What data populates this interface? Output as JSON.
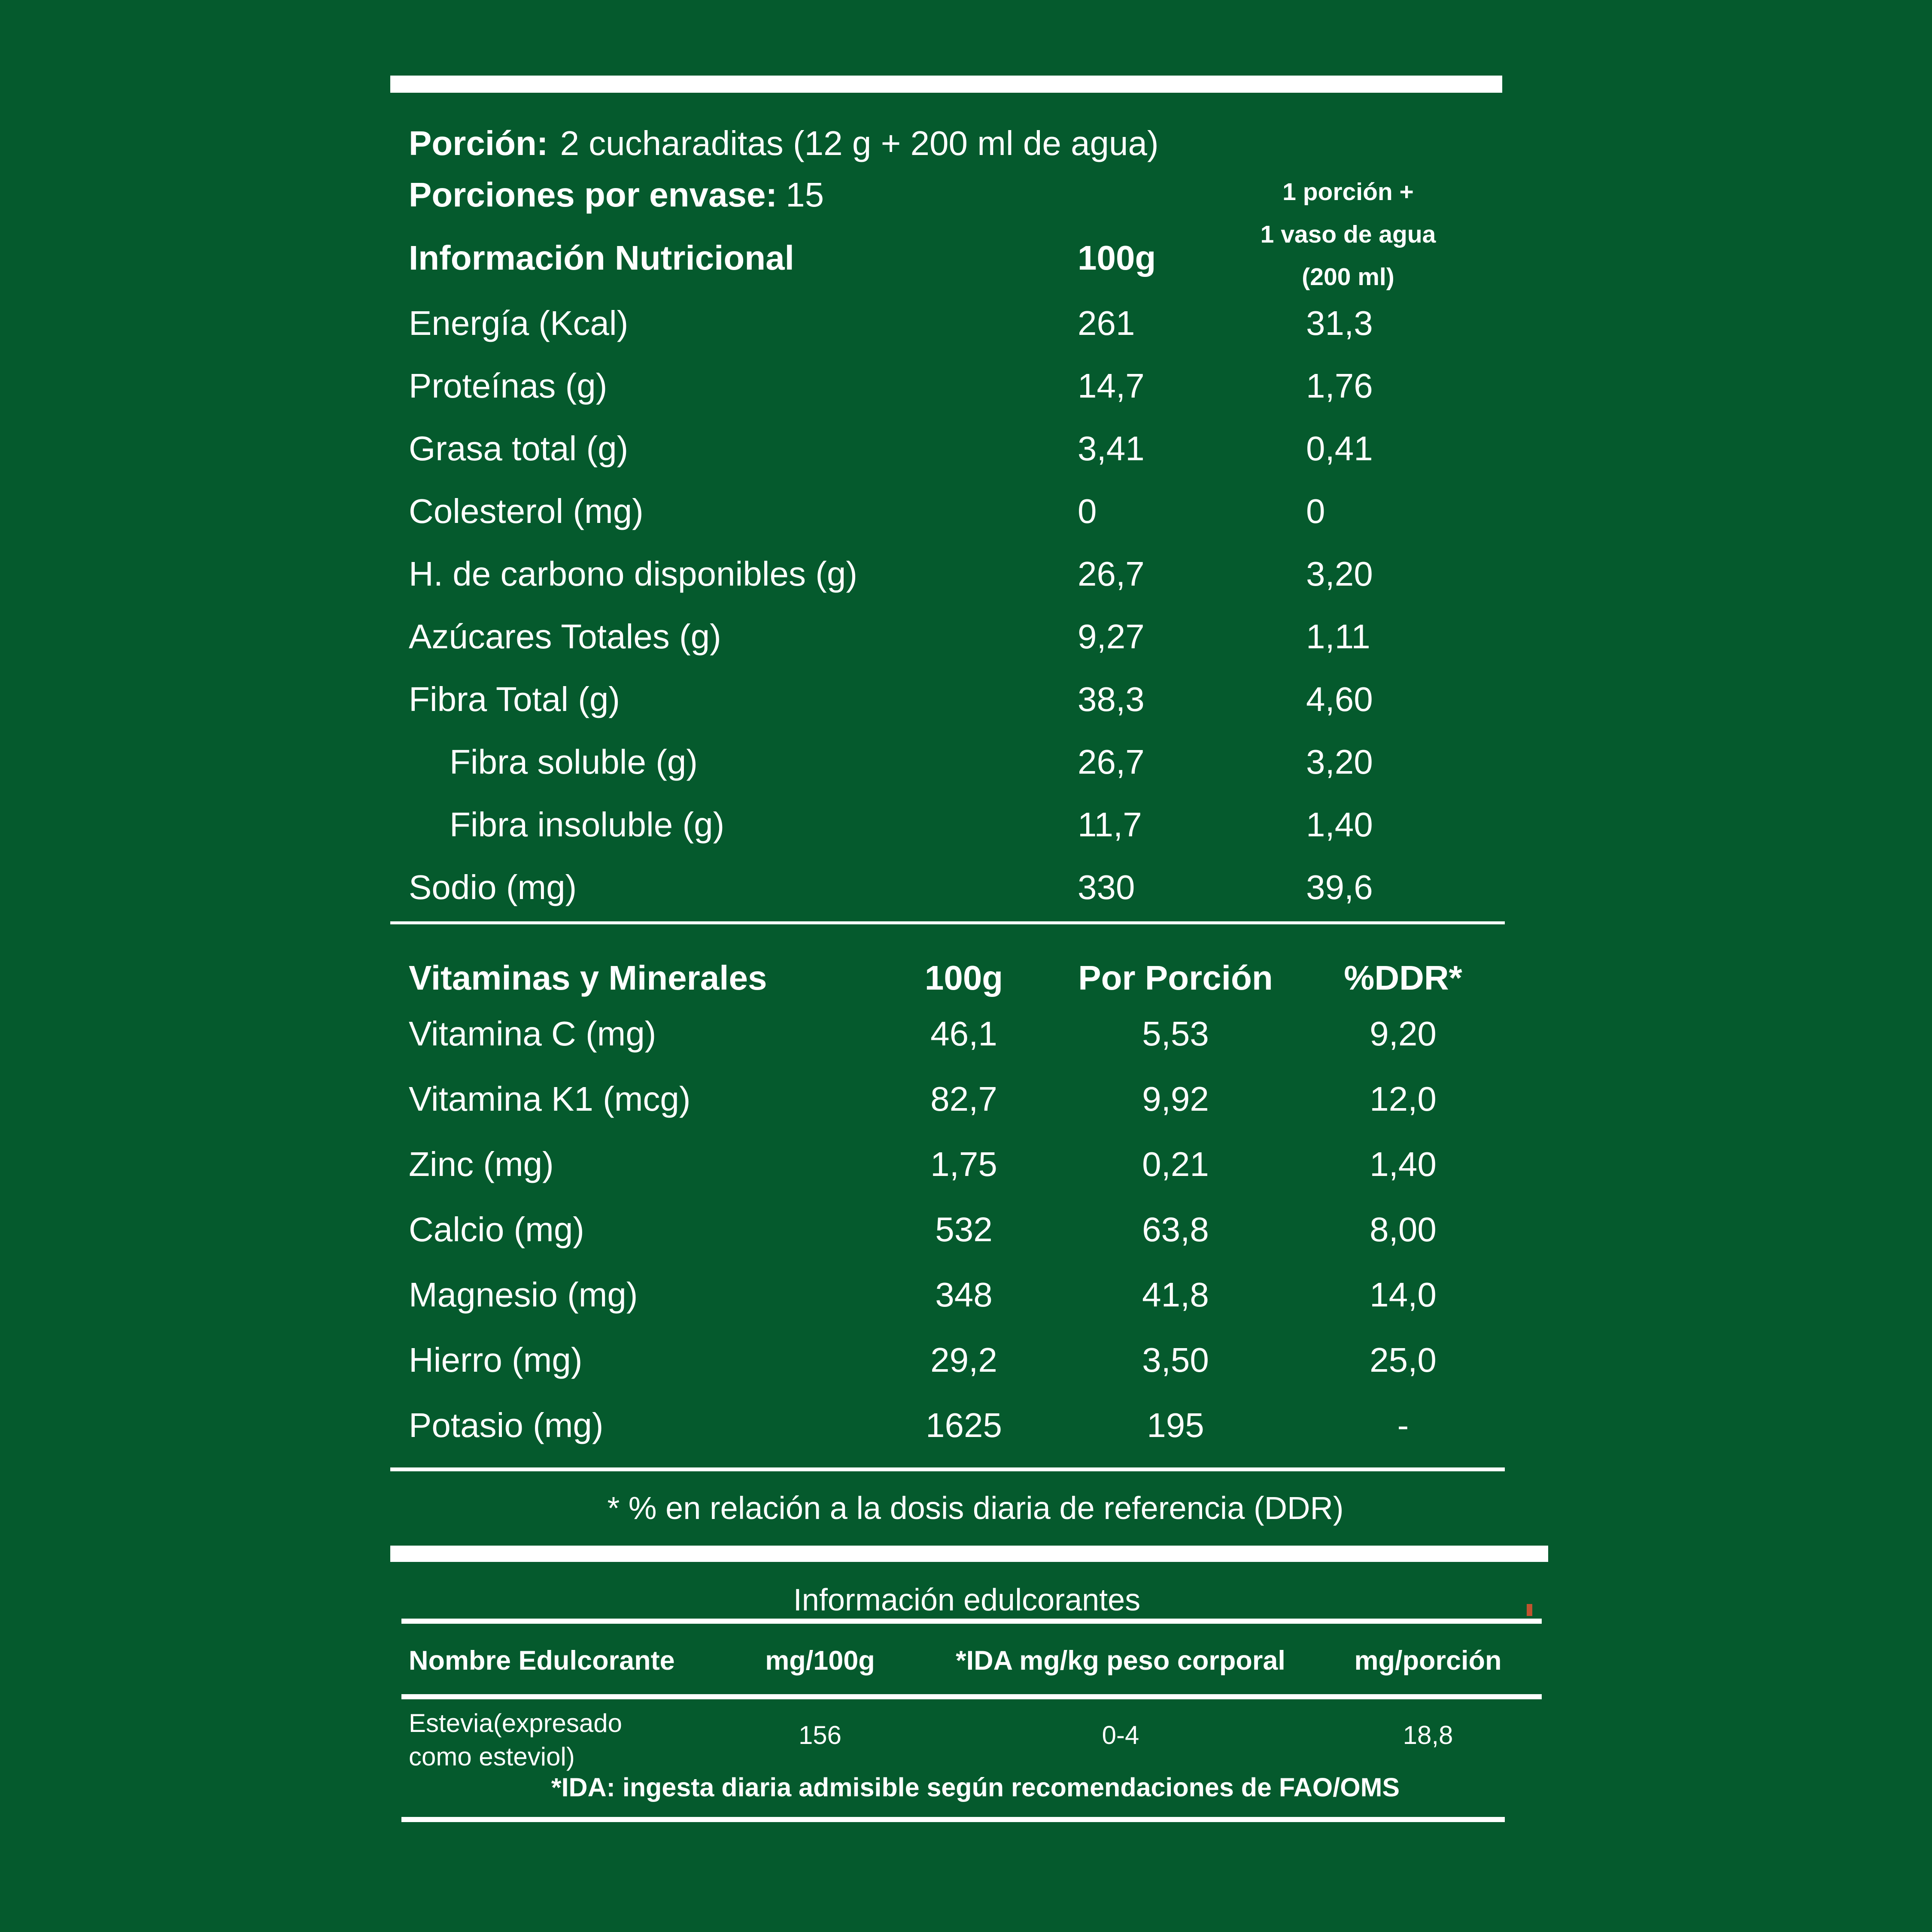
{
  "colors": {
    "background": "#055A2D",
    "text": "#FFFFFF",
    "rule": "#FFFFFF",
    "stray_mark": "#C0532F"
  },
  "serving": {
    "porcion_label": "Porción:",
    "porcion_value": "2 cucharaditas (12 g + 200 ml de agua)",
    "envase_label": "Porciones por envase:",
    "envase_value": "15"
  },
  "nutrition": {
    "title": "Información Nutricional",
    "col_100g": "100g",
    "portion_header": {
      "line1": "1 porción +",
      "line2": "1 vaso de agua",
      "line3": "(200 ml)"
    },
    "rows": [
      {
        "label": "Energía (Kcal)",
        "v100": "261",
        "vport": "31,3"
      },
      {
        "label": "Proteínas (g)",
        "v100": "14,7",
        "vport": "1,76"
      },
      {
        "label": "Grasa total (g)",
        "v100": "3,41",
        "vport": "0,41"
      },
      {
        "label": "Colesterol (mg)",
        "v100": "0",
        "vport": "0"
      },
      {
        "label": "H. de carbono disponibles (g)",
        "v100": "26,7",
        "vport": "3,20"
      },
      {
        "label": "Azúcares Totales (g)",
        "v100": "9,27",
        "vport": "1,11"
      },
      {
        "label": "Fibra Total (g)",
        "v100": "38,3",
        "vport": "4,60"
      },
      {
        "label": "Fibra soluble (g)",
        "v100": "26,7",
        "vport": "3,20"
      },
      {
        "label": "Fibra insoluble (g)",
        "v100": "11,7",
        "vport": "1,40"
      },
      {
        "label": "Sodio (mg)",
        "v100": "330",
        "vport": "39,6"
      }
    ]
  },
  "vitamins": {
    "title": "Vitaminas y Minerales",
    "col_100g": "100g",
    "col_portion": "Por Porción",
    "col_ddr": "%DDR*",
    "rows": [
      {
        "label": "Vitamina C (mg)",
        "v100": "46,1",
        "vport": "5,53",
        "ddr": "9,20"
      },
      {
        "label": "Vitamina K1 (mcg)",
        "v100": "82,7",
        "vport": "9,92",
        "ddr": "12,0"
      },
      {
        "label": "Zinc (mg)",
        "v100": "1,75",
        "vport": "0,21",
        "ddr": "1,40"
      },
      {
        "label": "Calcio (mg)",
        "v100": "532",
        "vport": "63,8",
        "ddr": "8,00"
      },
      {
        "label": "Magnesio (mg)",
        "v100": "348",
        "vport": "41,8",
        "ddr": "14,0"
      },
      {
        "label": "Hierro (mg)",
        "v100": "29,2",
        "vport": "3,50",
        "ddr": "25,0"
      },
      {
        "label": "Potasio (mg)",
        "v100": "1625",
        "vport": "195",
        "ddr": "-"
      }
    ]
  },
  "footnotes": {
    "ddr": "* % en relación a la dosis diaria de referencia (DDR)",
    "ida": "*IDA: ingesta diaria admisible según recomendaciones de FAO/OMS"
  },
  "sweeteners": {
    "title": "Información edulcorantes",
    "headers": {
      "name": "Nombre Edulcorante",
      "mg100": "mg/100g",
      "ida": "*IDA mg/kg peso corporal",
      "mgport": "mg/porción"
    },
    "row": {
      "name_line1": "Estevia(expresado",
      "name_line2": "como esteviol)",
      "mg100": "156",
      "ida": "0-4",
      "mgport": "18,8"
    }
  }
}
